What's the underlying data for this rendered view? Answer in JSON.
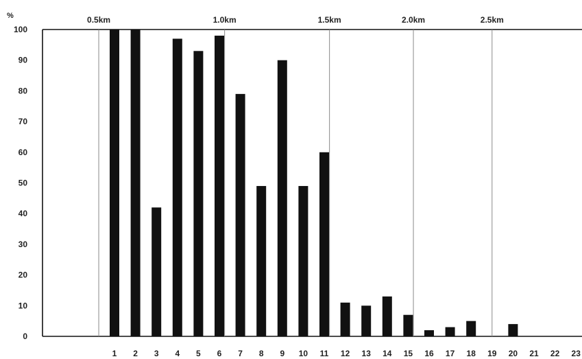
{
  "chart_data": {
    "type": "bar",
    "title": "",
    "xlabel": "",
    "ylabel": "%",
    "ylim": [
      0,
      100
    ],
    "y_ticks": [
      0,
      10,
      20,
      30,
      40,
      50,
      60,
      70,
      80,
      90,
      100
    ],
    "categories": [
      "1",
      "2",
      "3",
      "4",
      "5",
      "6",
      "7",
      "8",
      "9",
      "10",
      "11",
      "12",
      "13",
      "14",
      "15",
      "16",
      "17",
      "18",
      "19",
      "20",
      "21",
      "22",
      "23"
    ],
    "values": [
      100,
      100,
      42,
      97,
      93,
      98,
      79,
      49,
      90,
      49,
      60,
      11,
      10,
      13,
      7,
      2,
      3,
      5,
      0,
      4,
      0,
      0,
      0
    ],
    "grid": false,
    "reference_lines": [
      {
        "label": "0.5km",
        "x_category": 0.25
      },
      {
        "label": "1.0km",
        "x_category": 6.25
      },
      {
        "label": "1.5km",
        "x_category": 11.25
      },
      {
        "label": "2.0km",
        "x_category": 15.25
      },
      {
        "label": "2.5km",
        "x_category": 19.0
      }
    ],
    "colors": {
      "bar": "#111111",
      "axis": "#111111",
      "reference_line": "#888888",
      "background": "#ffffff"
    }
  }
}
